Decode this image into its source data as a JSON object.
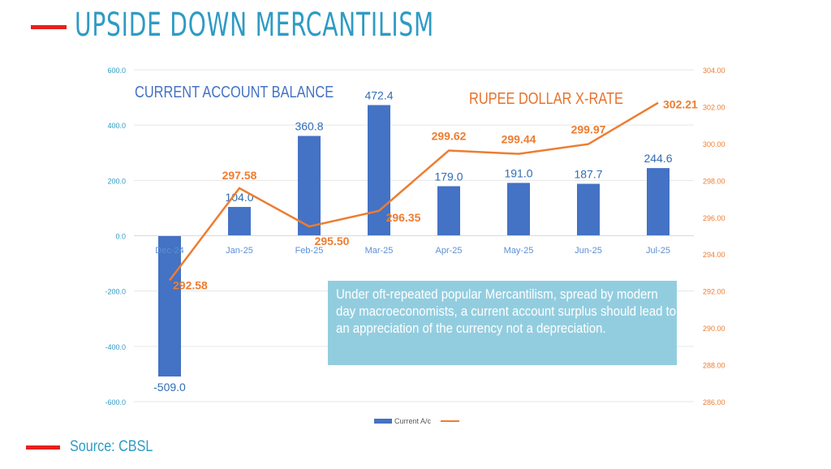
{
  "title": "UPSIDE DOWN MERCANTILISM",
  "source": "Source: CBSL",
  "note": "Under oft-repeated popular Mercantilism, spread by modern day macroeconomists, a current account surplus should lead to an appreciation of the currency not a depreciation.",
  "chart_data": {
    "type": "bar+line",
    "categories": [
      "Dec-24",
      "Jan-25",
      "Feb-25",
      "Mar-25",
      "Apr-25",
      "May-25",
      "Jun-25",
      "Jul-25"
    ],
    "series": [
      {
        "name": "Current A/c",
        "type": "bar",
        "axis": "left",
        "label": "CURRENT ACCOUNT BALANCE",
        "color": "#4472C4",
        "values": [
          -509.0,
          104.0,
          360.8,
          472.4,
          179.0,
          191.0,
          187.7,
          244.6
        ],
        "labels": [
          "-509.0",
          "104.0",
          "360.8",
          "472.4",
          "179.0",
          "191.0",
          "187.7",
          "244.6"
        ]
      },
      {
        "name": "",
        "type": "line",
        "axis": "right",
        "label": "RUPEE DOLLAR X-RATE",
        "color": "#ED7D31",
        "values": [
          292.58,
          297.58,
          295.5,
          296.35,
          299.62,
          299.44,
          299.97,
          302.21
        ],
        "labels": [
          "292.58",
          "297.58",
          "295.50",
          "296.35",
          "299.62",
          "299.44",
          "299.97",
          "302.21"
        ]
      }
    ],
    "left_axis": {
      "range": [
        -600,
        600
      ],
      "ticks": [
        "600.0",
        "400.0",
        "200.0",
        "0.0",
        "-200.0",
        "-400.0",
        "-600.0"
      ]
    },
    "right_axis": {
      "range": [
        286,
        304
      ],
      "ticks": [
        "304.00",
        "302.00",
        "300.00",
        "298.00",
        "296.00",
        "294.00",
        "292.00",
        "290.00",
        "288.00",
        "286.00"
      ]
    },
    "legend": {
      "position": "bottom",
      "items": [
        "Current A/c",
        ""
      ]
    }
  }
}
